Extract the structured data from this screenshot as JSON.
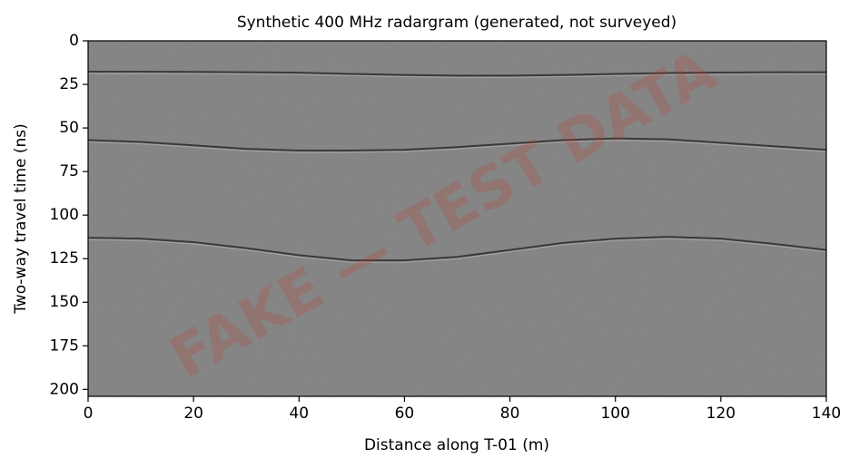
{
  "chart_data": {
    "type": "line",
    "title": "Synthetic 400 MHz radargram (generated, not surveyed)",
    "x_label": "Distance along T-01 (m)",
    "y_label": "Two-way travel time (ns)",
    "annotation": "FAKE — TEST DATA",
    "x": [
      0,
      10,
      20,
      30,
      40,
      50,
      60,
      70,
      80,
      90,
      100,
      110,
      120,
      130,
      140
    ],
    "series": [
      {
        "color": "#3a3a3a",
        "values": [
          17.7,
          17.7,
          17.8,
          18,
          18.3,
          19,
          19.6,
          20,
          20,
          19.6,
          19,
          18.5,
          18.2,
          18,
          18
        ]
      },
      {
        "color": "#3a3a3a",
        "values": [
          57,
          58,
          60,
          62,
          63,
          63,
          62.5,
          61,
          59,
          57,
          56,
          56.5,
          58.5,
          60.5,
          62.5
        ]
      },
      {
        "color": "#3a3a3a",
        "values": [
          113,
          113.5,
          115.5,
          119,
          123,
          126,
          126,
          124,
          120,
          116,
          113.5,
          112.5,
          113.5,
          116.5,
          120
        ]
      }
    ],
    "background": "#808080",
    "xlim": [
      0,
      140
    ],
    "xticks": [
      0,
      20,
      40,
      60,
      80,
      100,
      120,
      140
    ],
    "ylim": [
      204,
      0
    ],
    "yticks": [
      0,
      25,
      50,
      75,
      100,
      125,
      150,
      175,
      200
    ]
  }
}
